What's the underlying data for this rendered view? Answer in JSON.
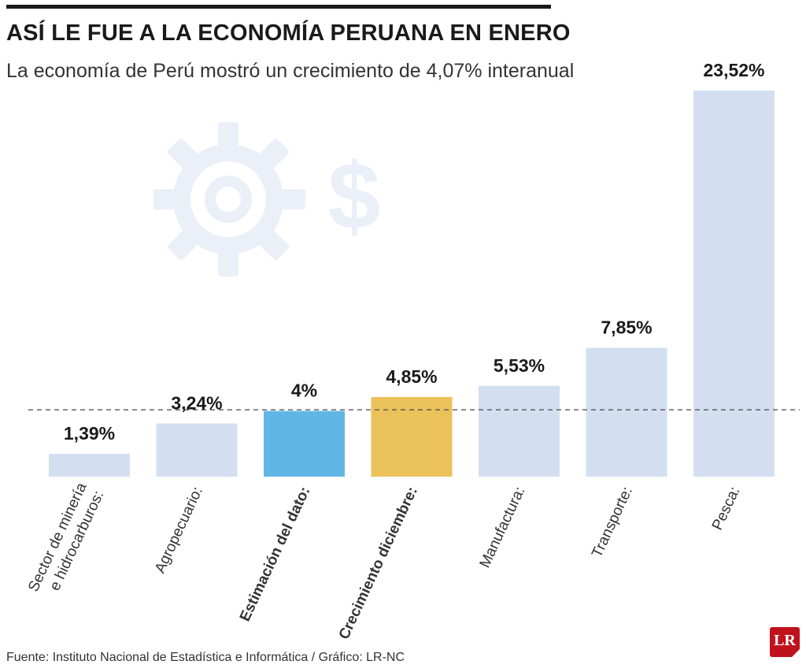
{
  "header": {
    "title": "ASÍ LE FUE A LA ECONOMÍA PERUANA EN ENERO",
    "subtitle": "La economía de Perú mostró un crecimiento de 4,07% interanual"
  },
  "footer": {
    "source": "Fuente: Instituto Nacional de Estadística e Informática / Gráfico: LR-NC",
    "logo_text": "LR"
  },
  "decor_icons": [
    "gear-icon",
    "dollar-icon"
  ],
  "colors": {
    "default_bar": "#d3dff1",
    "estimate_bar": "#62b6e6",
    "december_bar": "#ebc15a",
    "decor": "#eaeff8",
    "reference_line": "#555555",
    "logo": "#c0121c"
  },
  "chart_data": {
    "type": "bar",
    "title": "ASÍ LE FUE A LA ECONOMÍA PERUANA EN ENERO",
    "categories": [
      "Sector de minería e hidrocarburos:",
      "Agropecuario:",
      "Estimación del dato:",
      "Crecimiento diciembre:",
      "Manufactura:",
      "Transporte:",
      "Pesca:"
    ],
    "values": [
      1.39,
      3.24,
      4,
      4.85,
      5.53,
      7.85,
      23.52
    ],
    "value_labels": [
      "1,39%",
      "3,24%",
      "4%",
      "4,85%",
      "5,53%",
      "7,85%",
      "23,52%"
    ],
    "highlight": [
      "default",
      "default",
      "estimate",
      "december",
      "default",
      "default",
      "default"
    ],
    "bold_labels": [
      false,
      false,
      true,
      true,
      false,
      false,
      false
    ],
    "reference_value": 4.07,
    "reference_line_style": "dashed",
    "ylim": [
      0,
      23.52
    ],
    "grid": false,
    "legend": "none",
    "xlabel": "",
    "ylabel": ""
  }
}
